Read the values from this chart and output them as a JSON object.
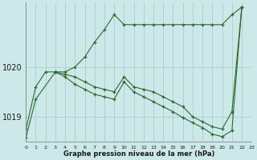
{
  "title": "Graphe pression niveau de la mer (hPa)",
  "background_color": "#cce8e8",
  "grid_color": "#aad0d0",
  "line_color": "#2d6a2d",
  "xlim": [
    0,
    23
  ],
  "ylim": [
    1018.5,
    1021.3
  ],
  "yticks": [
    1019,
    1020
  ],
  "xticks": [
    0,
    1,
    2,
    3,
    4,
    5,
    6,
    7,
    8,
    9,
    10,
    11,
    12,
    13,
    14,
    15,
    16,
    17,
    18,
    19,
    20,
    21,
    22,
    23
  ],
  "lines": [
    {
      "x": [
        0,
        1,
        2,
        3,
        4,
        5,
        6,
        7,
        8,
        9,
        10,
        11,
        12,
        13,
        14,
        15,
        16,
        17,
        18,
        19,
        20,
        21,
        22
      ],
      "y": [
        1018.75,
        1019.6,
        1019.9,
        1019.9,
        1019.9,
        1020.0,
        1020.2,
        1020.5,
        1020.75,
        1021.05,
        1020.85,
        1020.85,
        1020.85,
        1020.85,
        1020.85,
        1020.85,
        1020.85,
        1020.85,
        1020.85,
        1020.85,
        1020.85,
        1021.05,
        1021.2
      ]
    },
    {
      "x": [
        3,
        4,
        5,
        6,
        7,
        8,
        9,
        10,
        11,
        12,
        13,
        14,
        15,
        16,
        17,
        18,
        19,
        20,
        21,
        22
      ],
      "y": [
        1019.9,
        1019.85,
        1019.8,
        1019.7,
        1019.6,
        1019.55,
        1019.5,
        1019.8,
        1019.6,
        1019.55,
        1019.5,
        1019.4,
        1019.3,
        1019.2,
        1019.0,
        1018.9,
        1018.8,
        1018.75,
        1019.1,
        1021.2
      ]
    },
    {
      "x": [
        3,
        4,
        5,
        6,
        7,
        8,
        9,
        10,
        11,
        12,
        13,
        14,
        15,
        16,
        17,
        18,
        19,
        20,
        21,
        22
      ],
      "y": [
        1019.9,
        1019.8,
        1019.65,
        1019.55,
        1019.45,
        1019.4,
        1019.35,
        1019.7,
        1019.5,
        1019.4,
        1019.3,
        1019.2,
        1019.1,
        1018.98,
        1018.88,
        1018.78,
        1018.65,
        1018.6,
        1018.72,
        1021.2
      ]
    },
    {
      "x": [
        0,
        1,
        3
      ],
      "y": [
        1018.58,
        1019.35,
        1019.9
      ]
    }
  ]
}
